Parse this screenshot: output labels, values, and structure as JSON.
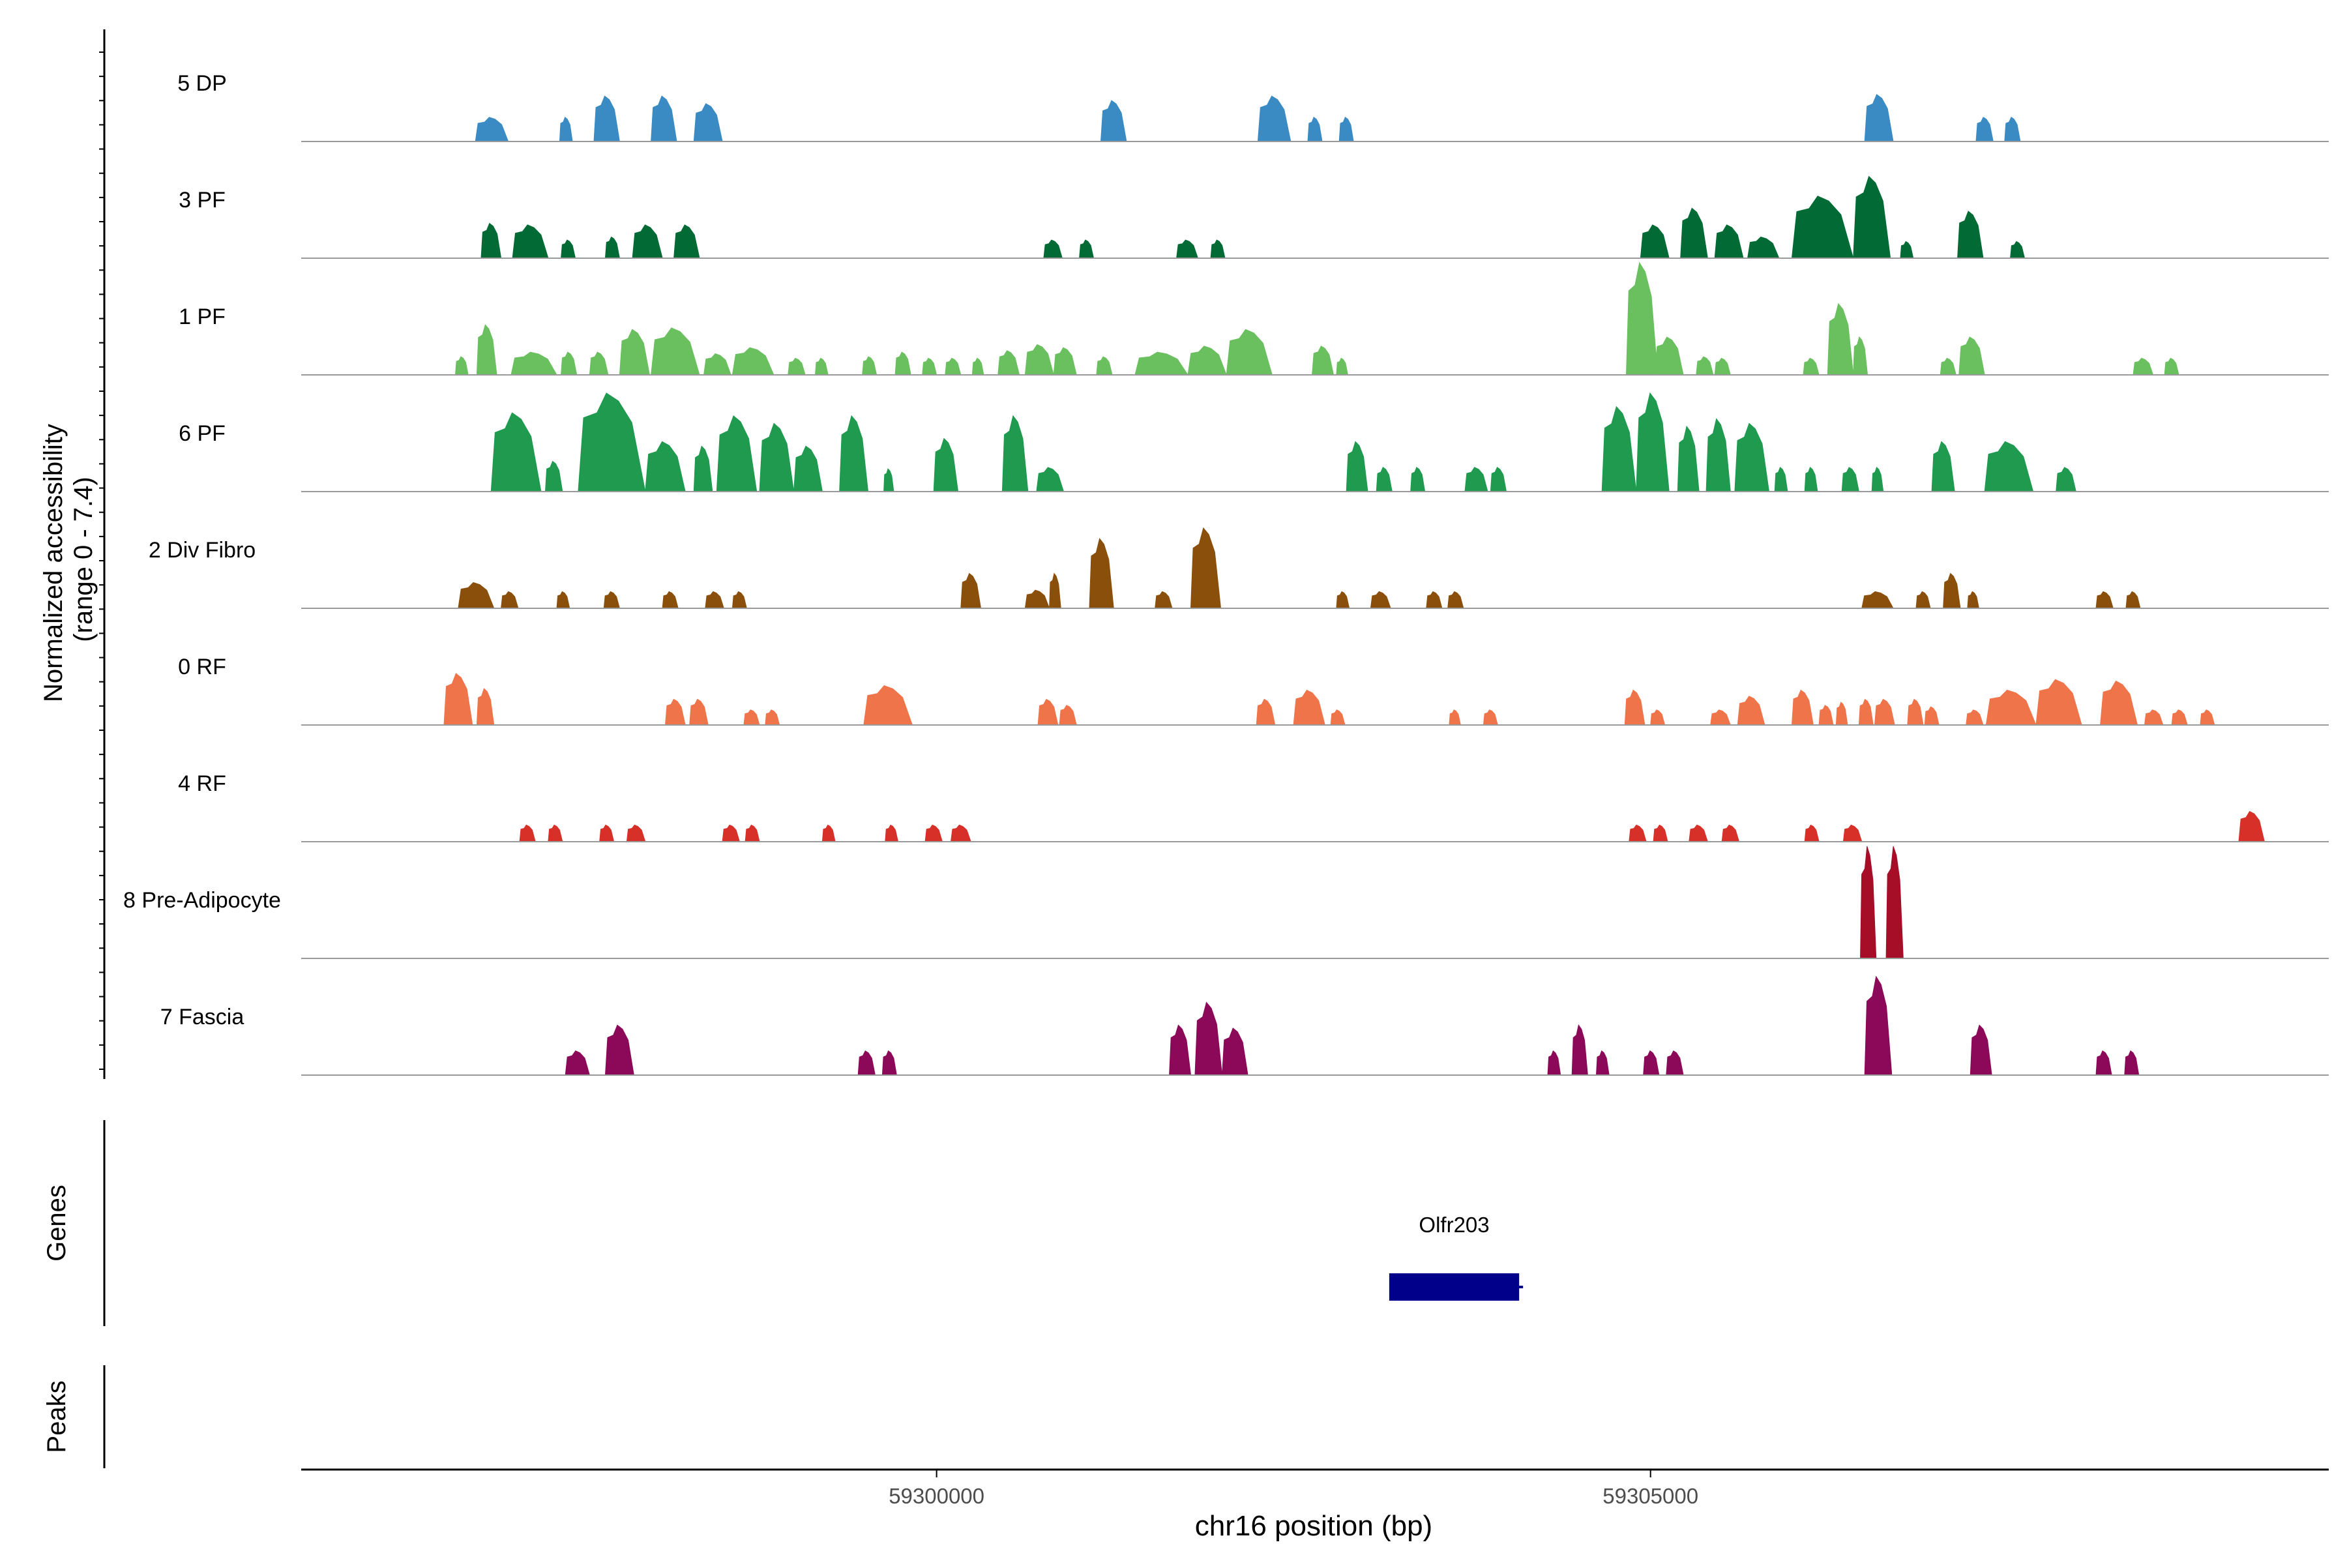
{
  "chart_data": {
    "type": "area",
    "title": "",
    "xlabel": "chr16 position (bp)",
    "ylabel_line1": "Normalized accessibility",
    "ylabel_line2": "(range 0 - 7.4)",
    "y_range": [
      0,
      7.4
    ],
    "x_range": [
      59295550,
      59309750
    ],
    "x_ticks": [
      59300000,
      59305000
    ],
    "x_tick_labels": [
      "59300000",
      "59305000"
    ],
    "track_labels": {
      "genes": "Genes",
      "peaks": "Peaks"
    },
    "genes": [
      {
        "name": "Olfr203",
        "start": 59303170,
        "end": 59304080,
        "color": "#00008b"
      }
    ],
    "series": [
      {
        "name": "5 DP",
        "color": "#3a8bc4",
        "peaks": [
          [
            59296770,
            59297000,
            1.6
          ],
          [
            59297360,
            59297450,
            1.6
          ],
          [
            59297600,
            59297780,
            3.0
          ],
          [
            59298000,
            59298180,
            3.0
          ],
          [
            59298300,
            59298500,
            2.5
          ],
          [
            59301150,
            59301330,
            2.7
          ],
          [
            59302250,
            59302480,
            3.0
          ],
          [
            59302600,
            59302700,
            1.6
          ],
          [
            59302820,
            59302920,
            1.6
          ],
          [
            59306500,
            59306700,
            3.1
          ],
          [
            59307280,
            59307400,
            1.6
          ],
          [
            59307480,
            59307590,
            1.6
          ]
        ]
      },
      {
        "name": "3 PF",
        "color": "#026b35",
        "peaks": [
          [
            59296810,
            59296950,
            2.3
          ],
          [
            59297030,
            59297280,
            2.2
          ],
          [
            59297370,
            59297470,
            1.2
          ],
          [
            59297680,
            59297780,
            1.4
          ],
          [
            59297870,
            59298080,
            2.2
          ],
          [
            59298160,
            59298340,
            2.2
          ],
          [
            59300750,
            59300880,
            1.2
          ],
          [
            59301000,
            59301100,
            1.2
          ],
          [
            59301680,
            59301830,
            1.2
          ],
          [
            59301920,
            59302020,
            1.2
          ],
          [
            59304930,
            59305130,
            2.2
          ],
          [
            59305210,
            59305400,
            3.3
          ],
          [
            59305450,
            59305650,
            2.2
          ],
          [
            59305680,
            59305900,
            1.4
          ],
          [
            59305990,
            59306420,
            4.1
          ],
          [
            59306420,
            59306680,
            5.4
          ],
          [
            59306750,
            59306840,
            1.1
          ],
          [
            59307150,
            59307330,
            3.1
          ],
          [
            59307520,
            59307620,
            1.1
          ]
        ]
      },
      {
        "name": "1 PF",
        "color": "#6abf5f",
        "peaks": [
          [
            59296630,
            59296720,
            1.2
          ],
          [
            59296780,
            59296920,
            3.3
          ],
          [
            59297020,
            59297340,
            1.5
          ],
          [
            59297370,
            59297480,
            1.5
          ],
          [
            59297570,
            59297700,
            1.5
          ],
          [
            59297780,
            59297990,
            3.0
          ],
          [
            59298000,
            59298340,
            3.1
          ],
          [
            59298370,
            59298560,
            1.4
          ],
          [
            59298570,
            59298860,
            1.8
          ],
          [
            59298960,
            59299080,
            1.1
          ],
          [
            59299150,
            59299240,
            1.1
          ],
          [
            59299480,
            59299580,
            1.2
          ],
          [
            59299710,
            59299820,
            1.5
          ],
          [
            59299900,
            59300000,
            1.1
          ],
          [
            59300060,
            59300170,
            1.1
          ],
          [
            59300250,
            59300330,
            1.1
          ],
          [
            59300430,
            59300580,
            1.6
          ],
          [
            59300620,
            59300820,
            2.0
          ],
          [
            59300820,
            59300980,
            1.8
          ],
          [
            59301120,
            59301230,
            1.2
          ],
          [
            59301390,
            59301760,
            1.5
          ],
          [
            59301760,
            59302030,
            1.9
          ],
          [
            59302030,
            59302350,
            3.0
          ],
          [
            59302630,
            59302780,
            1.9
          ],
          [
            59302800,
            59302880,
            1.1
          ],
          [
            59304830,
            59305050,
            7.4
          ],
          [
            59305030,
            59305230,
            2.5
          ],
          [
            59305320,
            59305440,
            1.2
          ],
          [
            59305450,
            59305560,
            1.1
          ],
          [
            59306070,
            59306180,
            1.1
          ],
          [
            59306240,
            59306420,
            4.7
          ],
          [
            59306420,
            59306520,
            2.5
          ],
          [
            59307030,
            59307140,
            1.1
          ],
          [
            59307160,
            59307340,
            2.5
          ],
          [
            59308380,
            59308520,
            1.1
          ],
          [
            59308600,
            59308700,
            1.1
          ]
        ]
      },
      {
        "name": "6 PF",
        "color": "#1f9a4f",
        "peaks": [
          [
            59296880,
            59297230,
            5.2
          ],
          [
            59297260,
            59297380,
            2.0
          ],
          [
            59297490,
            59297960,
            6.5
          ],
          [
            59297960,
            59298240,
            3.3
          ],
          [
            59298300,
            59298430,
            3.0
          ],
          [
            59298460,
            59298740,
            5.0
          ],
          [
            59298760,
            59299000,
            4.5
          ],
          [
            59299000,
            59299200,
            3.0
          ],
          [
            59299320,
            59299520,
            5.0
          ],
          [
            59299630,
            59299700,
            1.5
          ],
          [
            59299980,
            59300150,
            3.5
          ],
          [
            59300460,
            59300640,
            5.0
          ],
          [
            59300700,
            59300890,
            1.6
          ],
          [
            59302870,
            59303020,
            3.3
          ],
          [
            59303080,
            59303190,
            1.6
          ],
          [
            59303320,
            59303420,
            1.6
          ],
          [
            59303700,
            59303860,
            1.6
          ],
          [
            59303880,
            59303990,
            1.6
          ],
          [
            59304660,
            59304900,
            5.6
          ],
          [
            59304900,
            59305130,
            6.5
          ],
          [
            59305190,
            59305340,
            4.3
          ],
          [
            59305390,
            59305560,
            4.8
          ],
          [
            59305590,
            59305830,
            4.5
          ],
          [
            59305870,
            59305960,
            1.6
          ],
          [
            59306080,
            59306170,
            1.6
          ],
          [
            59306340,
            59306460,
            1.6
          ],
          [
            59306550,
            59306630,
            1.6
          ],
          [
            59306970,
            59307130,
            3.3
          ],
          [
            59307340,
            59307680,
            3.3
          ],
          [
            59307840,
            59307980,
            1.6
          ]
        ]
      },
      {
        "name": "2 Div Fibro",
        "color": "#8b4f0c",
        "peaks": [
          [
            59296650,
            59296900,
            1.7
          ],
          [
            59296950,
            59297070,
            1.1
          ],
          [
            59297340,
            59297430,
            1.1
          ],
          [
            59297670,
            59297780,
            1.1
          ],
          [
            59298080,
            59298190,
            1.1
          ],
          [
            59298380,
            59298510,
            1.1
          ],
          [
            59298570,
            59298670,
            1.1
          ],
          [
            59300170,
            59300310,
            2.3
          ],
          [
            59300620,
            59300790,
            1.2
          ],
          [
            59300790,
            59300870,
            2.3
          ],
          [
            59301070,
            59301240,
            4.6
          ],
          [
            59301530,
            59301650,
            1.1
          ],
          [
            59301780,
            59301990,
            5.3
          ],
          [
            59302800,
            59302890,
            1.1
          ],
          [
            59303040,
            59303180,
            1.1
          ],
          [
            59303430,
            59303540,
            1.1
          ],
          [
            59303580,
            59303690,
            1.1
          ],
          [
            59306480,
            59306700,
            1.1
          ],
          [
            59306860,
            59306960,
            1.1
          ],
          [
            59307050,
            59307170,
            2.3
          ],
          [
            59307220,
            59307300,
            1.1
          ],
          [
            59308120,
            59308240,
            1.1
          ],
          [
            59308330,
            59308430,
            1.1
          ]
        ]
      },
      {
        "name": "0 RF",
        "color": "#f0744a",
        "peaks": [
          [
            59296550,
            59296750,
            3.4
          ],
          [
            59296780,
            59296900,
            2.4
          ],
          [
            59298100,
            59298240,
            1.7
          ],
          [
            59298270,
            59298400,
            1.7
          ],
          [
            59298650,
            59298760,
            1.0
          ],
          [
            59298800,
            59298900,
            1.0
          ],
          [
            59299490,
            59299830,
            2.6
          ],
          [
            59300710,
            59300850,
            1.7
          ],
          [
            59300860,
            59300980,
            1.3
          ],
          [
            59302240,
            59302370,
            1.7
          ],
          [
            59302500,
            59302720,
            2.3
          ],
          [
            59302760,
            59302860,
            1.0
          ],
          [
            59303590,
            59303670,
            1.0
          ],
          [
            59303830,
            59303930,
            1.0
          ],
          [
            59304820,
            59304960,
            2.3
          ],
          [
            59305000,
            59305100,
            1.0
          ],
          [
            59305420,
            59305560,
            1.0
          ],
          [
            59305610,
            59305800,
            1.9
          ],
          [
            59305990,
            59306140,
            2.3
          ],
          [
            59306180,
            59306280,
            1.3
          ],
          [
            59306300,
            59306380,
            1.5
          ],
          [
            59306460,
            59306560,
            1.7
          ],
          [
            59306570,
            59306710,
            1.7
          ],
          [
            59306800,
            59306910,
            1.7
          ],
          [
            59306920,
            59307020,
            1.2
          ],
          [
            59307210,
            59307330,
            1.0
          ],
          [
            59307350,
            59307700,
            2.3
          ],
          [
            59307700,
            59308020,
            3.0
          ],
          [
            59308150,
            59308410,
            2.9
          ],
          [
            59308460,
            59308590,
            1.0
          ],
          [
            59308650,
            59308760,
            1.0
          ],
          [
            59308850,
            59308950,
            1.0
          ]
        ]
      },
      {
        "name": "4 RF",
        "color": "#d73028",
        "peaks": [
          [
            59297080,
            59297190,
            1.1
          ],
          [
            59297280,
            59297380,
            1.1
          ],
          [
            59297640,
            59297740,
            1.1
          ],
          [
            59297830,
            59297960,
            1.1
          ],
          [
            59298500,
            59298620,
            1.1
          ],
          [
            59298660,
            59298760,
            1.1
          ],
          [
            59299200,
            59299290,
            1.1
          ],
          [
            59299640,
            59299730,
            1.1
          ],
          [
            59299920,
            59300040,
            1.1
          ],
          [
            59300100,
            59300240,
            1.1
          ],
          [
            59304850,
            59304970,
            1.1
          ],
          [
            59305020,
            59305120,
            1.1
          ],
          [
            59305270,
            59305400,
            1.1
          ],
          [
            59305500,
            59305620,
            1.1
          ],
          [
            59306080,
            59306180,
            1.1
          ],
          [
            59306350,
            59306480,
            1.1
          ],
          [
            59309120,
            59309300,
            2.0
          ]
        ]
      },
      {
        "name": "8 Pre-Adipocyte",
        "color": "#a50e26",
        "peaks": [
          [
            59306470,
            59306580,
            7.4
          ],
          [
            59306650,
            59306770,
            7.4
          ]
        ]
      },
      {
        "name": "7 Fascia",
        "color": "#8b0958",
        "peaks": [
          [
            59297400,
            59297570,
            1.6
          ],
          [
            59297680,
            59297880,
            3.3
          ],
          [
            59299450,
            59299570,
            1.6
          ],
          [
            59299620,
            59299720,
            1.6
          ],
          [
            59301630,
            59301780,
            3.3
          ],
          [
            59301810,
            59302000,
            4.8
          ],
          [
            59302000,
            59302180,
            3.1
          ],
          [
            59304280,
            59304370,
            1.6
          ],
          [
            59304450,
            59304560,
            3.3
          ],
          [
            59304620,
            59304710,
            1.6
          ],
          [
            59304950,
            59305060,
            1.6
          ],
          [
            59305110,
            59305230,
            1.6
          ],
          [
            59306500,
            59306690,
            6.5
          ],
          [
            59307240,
            59307390,
            3.3
          ],
          [
            59308120,
            59308230,
            1.6
          ],
          [
            59308320,
            59308420,
            1.6
          ]
        ]
      }
    ]
  }
}
